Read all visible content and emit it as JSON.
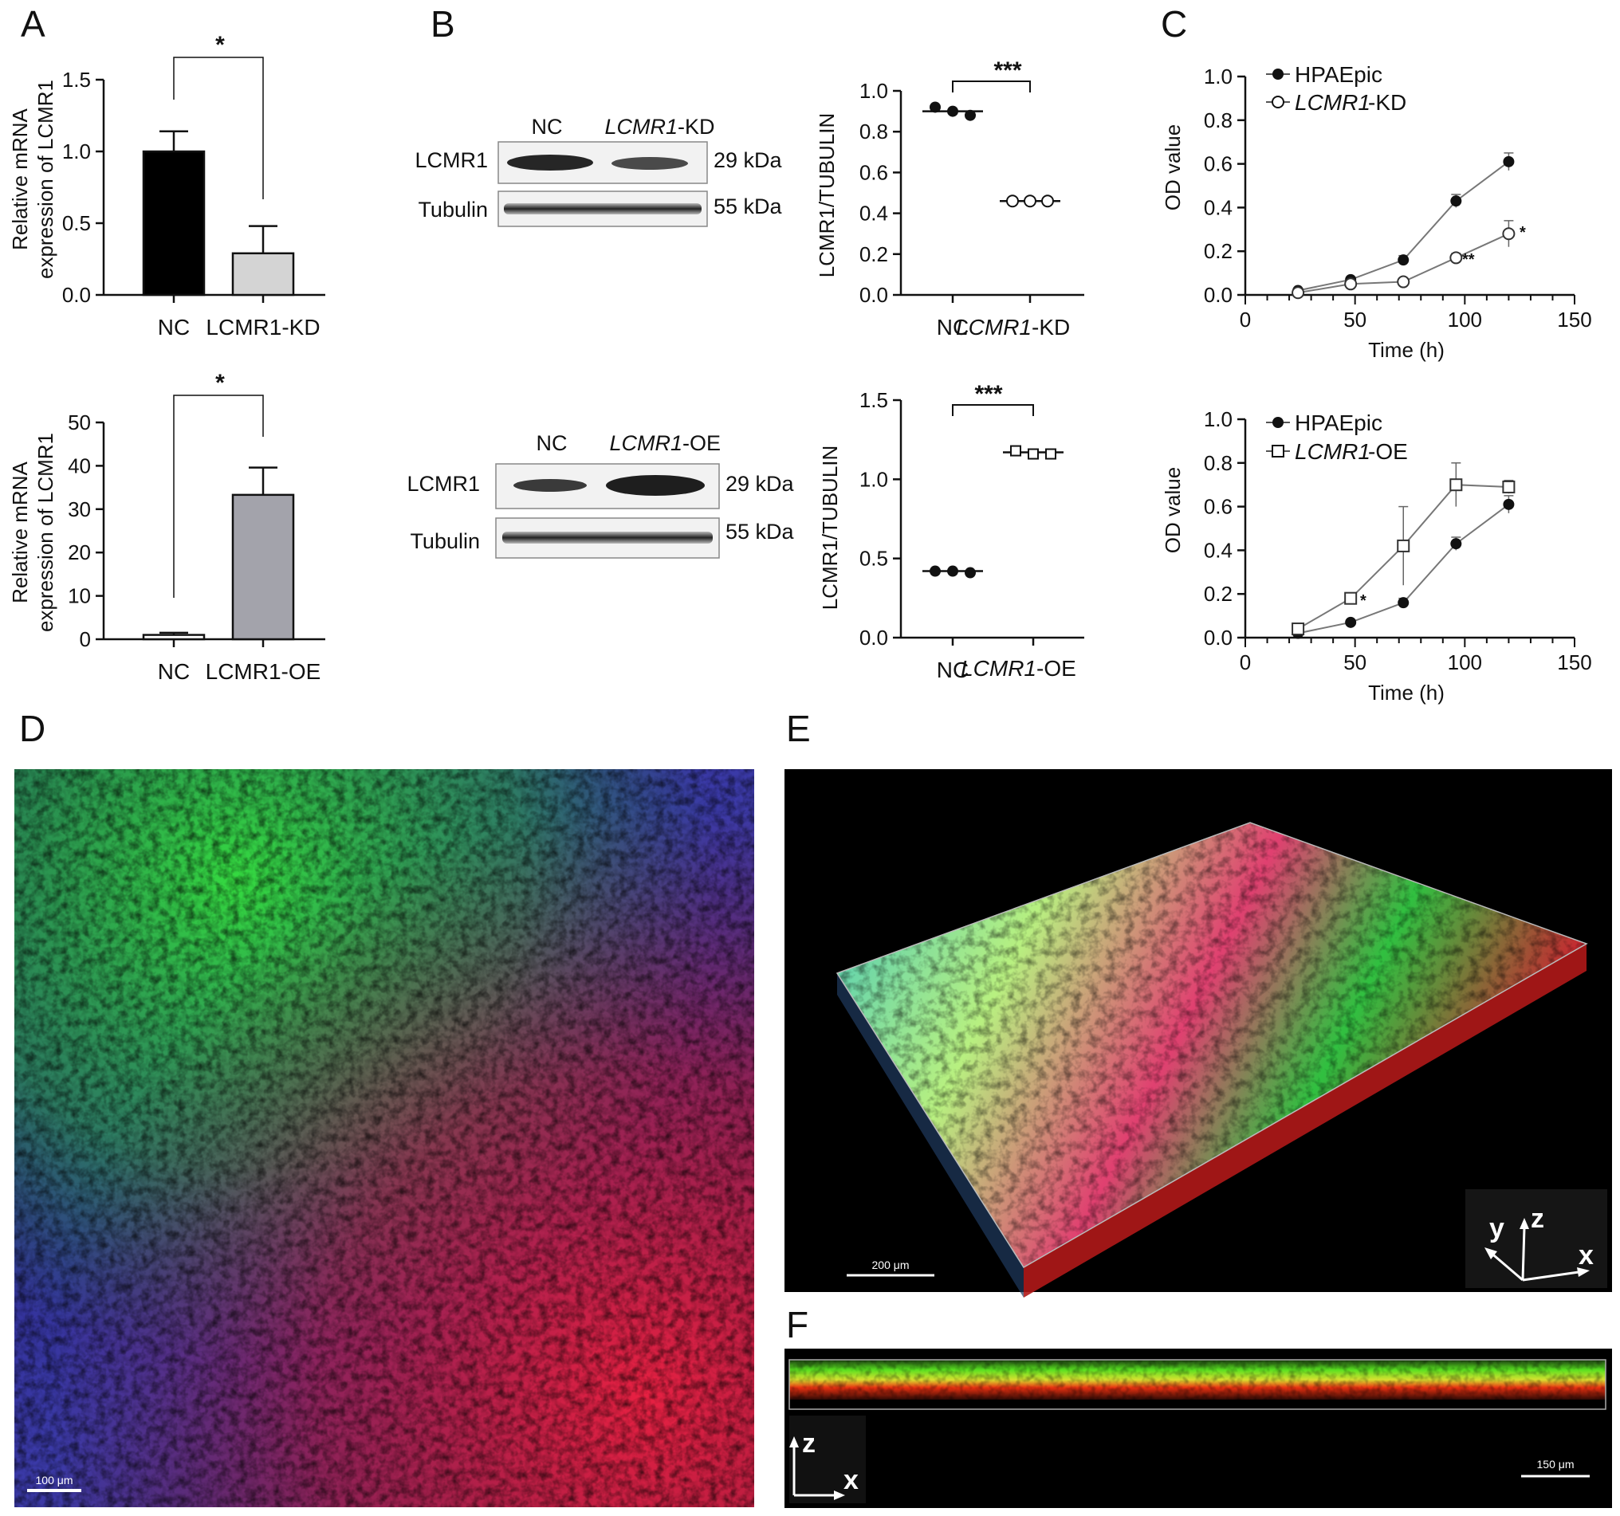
{
  "panels": {
    "A": "A",
    "B": "B",
    "C": "C",
    "D": "D",
    "E": "E",
    "F": "F"
  },
  "panel_A": {
    "ylabel_line1": "Relative mRNA",
    "ylabel_line2": "expression of LCMR1",
    "top_sig": "*",
    "bottom_sig": "*"
  },
  "panel_B": {
    "kd_lanes": [
      "NC",
      "LCMR1",
      "-KD"
    ],
    "oe_lanes": [
      "NC",
      "LCMR1",
      "-OE"
    ],
    "rows": [
      "LCMR1",
      "Tubulin"
    ],
    "kda": [
      "29 kDa",
      "55 kDa"
    ],
    "ratio_ylabel": "LCMR1/TUBULIN",
    "top_sig": "***",
    "bottom_sig": "***",
    "kd_x_italic": "LCMR1",
    "kd_x_suffix": "-KD",
    "oe_x_italic": "LCMR1",
    "oe_x_suffix": "-OE"
  },
  "panel_C": {
    "ylabel": "OD value",
    "xlabel": "Time (h)",
    "legend_top": [
      "HPAEpic",
      "LCMR1",
      "-KD"
    ],
    "legend_bottom": [
      "HPAEpic",
      "LCMR1",
      "-OE"
    ],
    "sig_top": [
      "*",
      "**"
    ],
    "sig_bottom": [
      "*"
    ]
  },
  "panel_E": {
    "scalebar": "200 μm",
    "axes": [
      "y",
      "z",
      "x"
    ]
  },
  "panel_D": {
    "scalebar": "100 μm"
  },
  "panel_F": {
    "scalebar": "150 μm",
    "axes": [
      "z",
      "x"
    ]
  },
  "colors": {
    "black_bar": "#000000",
    "light_bar": "#d4d4d4",
    "gray_bar": "#a3a3ab",
    "image_bg": "#000000",
    "green": "#2fdc3a",
    "red": "#e8213a",
    "blue": "#3a38c8"
  },
  "chart_data": [
    {
      "id": "A_top",
      "type": "bar",
      "categories": [
        "NC",
        "LCMR1-KD"
      ],
      "values": [
        1.0,
        0.29
      ],
      "errors": [
        0.14,
        0.19
      ],
      "ylim": [
        0,
        1.5
      ],
      "yticks": [
        "0.0",
        "0.5",
        "1.0",
        "1.5"
      ],
      "ylabel": "Relative mRNA expression of LCMR1"
    },
    {
      "id": "A_bottom",
      "type": "bar",
      "categories": [
        "NC",
        "LCMR1-OE"
      ],
      "values": [
        1.0,
        33.3
      ],
      "errors": [
        0.5,
        6.3
      ],
      "ylim": [
        0,
        50
      ],
      "yticks": [
        "0",
        "10",
        "20",
        "30",
        "40",
        "50"
      ],
      "ylabel": "Relative mRNA expression of LCMR1"
    },
    {
      "id": "B_top",
      "type": "scatter",
      "categories": [
        "NC",
        "LCMR1-KD"
      ],
      "points": [
        [
          0.92,
          0.9,
          0.88
        ],
        [
          0.46,
          0.46,
          0.46
        ]
      ],
      "means": [
        0.9,
        0.46
      ],
      "ylim": [
        0,
        1.0
      ],
      "yticks": [
        "0.0",
        "0.2",
        "0.4",
        "0.6",
        "0.8",
        "1.0"
      ],
      "ylabel": "LCMR1/TUBULIN"
    },
    {
      "id": "B_bottom",
      "type": "scatter",
      "categories": [
        "NC",
        "LCMR1-OE"
      ],
      "points": [
        [
          0.42,
          0.42,
          0.41
        ],
        [
          1.18,
          1.16,
          1.16
        ]
      ],
      "means": [
        0.42,
        1.17
      ],
      "ylim": [
        0,
        1.5
      ],
      "yticks": [
        "0.0",
        "0.5",
        "1.0",
        "1.5"
      ],
      "ylabel": "LCMR1/TUBULIN"
    },
    {
      "id": "C_top",
      "type": "line",
      "x": [
        24,
        48,
        72,
        96,
        120
      ],
      "xlim": [
        0,
        150
      ],
      "xticks": [
        "0",
        "50",
        "100",
        "150"
      ],
      "ylim": [
        0,
        1.0
      ],
      "yticks": [
        "0.0",
        "0.2",
        "0.4",
        "0.6",
        "0.8",
        "1.0"
      ],
      "xlabel": "Time (h)",
      "ylabel": "OD value",
      "series": [
        {
          "name": "HPAEpic",
          "marker": "filled-circle",
          "values": [
            0.02,
            0.07,
            0.16,
            0.43,
            0.61
          ],
          "errors": [
            0.01,
            0.01,
            0.02,
            0.03,
            0.04
          ]
        },
        {
          "name": "LCMR1-KD",
          "marker": "open-circle",
          "values": [
            0.01,
            0.05,
            0.06,
            0.17,
            0.28
          ],
          "errors": [
            0.01,
            0.01,
            0.01,
            0.02,
            0.06
          ]
        }
      ]
    },
    {
      "id": "C_bottom",
      "type": "line",
      "x": [
        24,
        48,
        72,
        96,
        120
      ],
      "xlim": [
        0,
        150
      ],
      "xticks": [
        "0",
        "50",
        "100",
        "150"
      ],
      "ylim": [
        0,
        1.0
      ],
      "yticks": [
        "0.0",
        "0.2",
        "0.4",
        "0.6",
        "0.8",
        "1.0"
      ],
      "xlabel": "Time (h)",
      "ylabel": "OD value",
      "series": [
        {
          "name": "HPAEpic",
          "marker": "filled-circle",
          "values": [
            0.02,
            0.07,
            0.16,
            0.43,
            0.61
          ],
          "errors": [
            0.01,
            0.01,
            0.02,
            0.03,
            0.04
          ]
        },
        {
          "name": "LCMR1-OE",
          "marker": "open-square",
          "values": [
            0.04,
            0.18,
            0.42,
            0.7,
            0.69
          ],
          "errors": [
            0.01,
            0.01,
            0.18,
            0.1,
            0.03
          ]
        }
      ]
    }
  ]
}
